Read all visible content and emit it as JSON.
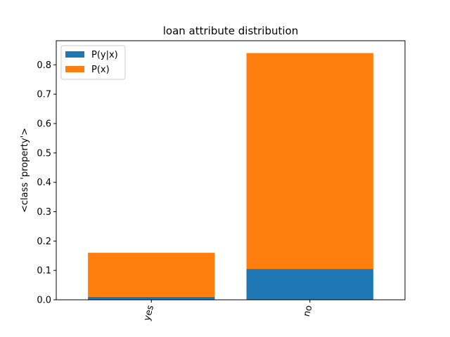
{
  "chart_data": {
    "type": "bar",
    "stacked": true,
    "title": "loan attribute distribution",
    "xlabel": "",
    "ylabel": "<class 'property'>",
    "categories": [
      "yes",
      "no"
    ],
    "series": [
      {
        "name": "P(y|x)",
        "color": "#1f77b4",
        "values": [
          0.01,
          0.105
        ]
      },
      {
        "name": "P(x)",
        "color": "#ff7f0e",
        "values": [
          0.15,
          0.735
        ]
      }
    ],
    "ylim": [
      0,
      0.882
    ],
    "yticks": [
      "0.0",
      "0.1",
      "0.2",
      "0.3",
      "0.4",
      "0.5",
      "0.6",
      "0.7",
      "0.8"
    ],
    "xtick_rotation": 75,
    "grid": false,
    "legend": "top-left"
  }
}
